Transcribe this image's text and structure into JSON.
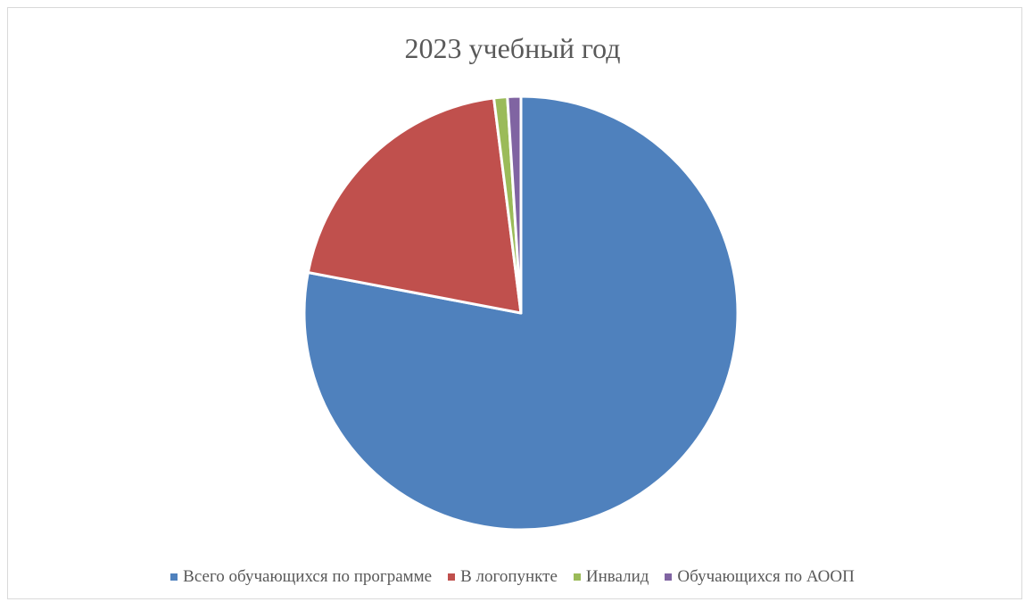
{
  "chart_data": {
    "type": "pie",
    "title": "2023 учебный год",
    "categories": [
      "Всего обучающихся по программе",
      "В логопункте",
      "Инвалид",
      "Обучающихся по АООП"
    ],
    "values": [
      78,
      20,
      1,
      1
    ],
    "colors": [
      "#4f81bd",
      "#c0504d",
      "#9bbb59",
      "#8064a2"
    ],
    "legend_position": "bottom",
    "start_angle_deg": 0,
    "direction": "clockwise"
  }
}
